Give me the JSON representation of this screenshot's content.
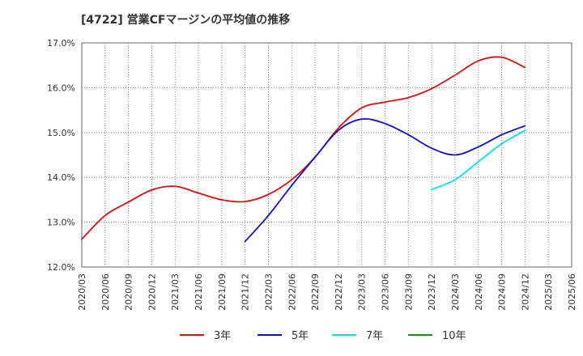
{
  "chart_data": {
    "type": "line",
    "title": "[4722]  営業CFマージンの平均値の推移",
    "xlabel": "",
    "ylabel": "",
    "ylim": [
      12.0,
      17.0
    ],
    "y_ticks": [
      "12.0%",
      "13.0%",
      "14.0%",
      "15.0%",
      "16.0%",
      "17.0%"
    ],
    "x_ticks": [
      "2020/03",
      "2020/06",
      "2020/09",
      "2020/12",
      "2021/03",
      "2021/06",
      "2021/09",
      "2021/12",
      "2022/03",
      "2022/06",
      "2022/09",
      "2022/12",
      "2023/03",
      "2023/06",
      "2023/09",
      "2023/12",
      "2024/03",
      "2024/06",
      "2024/09",
      "2024/12",
      "2025/03",
      "2025/06"
    ],
    "grid": true,
    "legend_position": "bottom",
    "series": [
      {
        "name": "3年",
        "color": "#dd1111",
        "x": [
          "2020/03",
          "2020/06",
          "2020/09",
          "2020/12",
          "2021/03",
          "2021/06",
          "2021/09",
          "2021/12",
          "2022/03",
          "2022/06",
          "2022/09",
          "2022/12",
          "2023/03",
          "2023/06",
          "2023/09",
          "2023/12",
          "2024/03",
          "2024/06",
          "2024/09",
          "2024/12"
        ],
        "values": [
          12.62,
          13.15,
          13.45,
          13.72,
          13.8,
          13.65,
          13.5,
          13.46,
          13.62,
          13.95,
          14.45,
          15.1,
          15.55,
          15.68,
          15.78,
          15.98,
          16.28,
          16.6,
          16.68,
          16.45
        ]
      },
      {
        "name": "5年",
        "color": "#1111cc",
        "x": [
          "2021/12",
          "2022/03",
          "2022/06",
          "2022/09",
          "2022/12",
          "2023/03",
          "2023/06",
          "2023/09",
          "2023/12",
          "2024/03",
          "2024/06",
          "2024/09",
          "2024/12"
        ],
        "values": [
          12.57,
          13.15,
          13.82,
          14.45,
          15.05,
          15.3,
          15.2,
          14.95,
          14.65,
          14.5,
          14.68,
          14.95,
          15.15
        ]
      },
      {
        "name": "7年",
        "color": "#00e5ee",
        "x": [
          "2023/12",
          "2024/03",
          "2024/06",
          "2024/09",
          "2024/12"
        ],
        "values": [
          13.73,
          13.95,
          14.35,
          14.75,
          15.05
        ]
      },
      {
        "name": "10年",
        "color": "#228b22",
        "x": [],
        "values": []
      }
    ]
  }
}
